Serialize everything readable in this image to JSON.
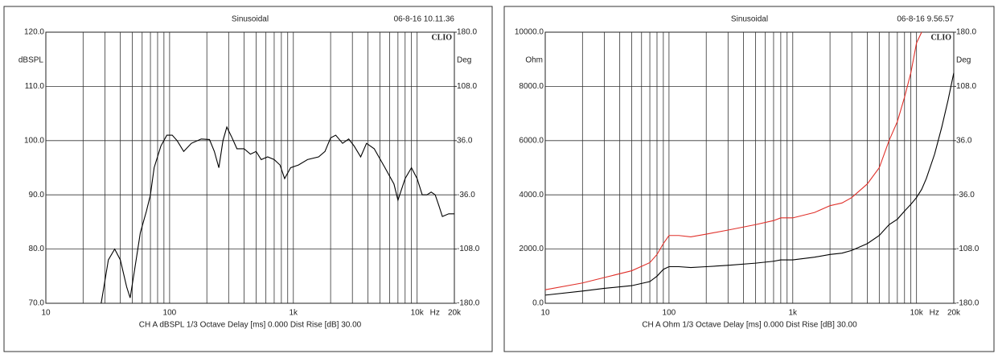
{
  "chart_data": [
    {
      "type": "line",
      "title": "Sinusoidal",
      "timestamp": "06-8-16 10.11.36",
      "brand": "CLIO",
      "ylabel": "dBSPL",
      "y2label": "Deg",
      "xunit": "Hz",
      "footer": "CH A   dBSPL   1/3 Octave   Delay [ms] 0.000   Dist Rise [dB] 30.00",
      "log_x": true,
      "grid": true,
      "xlim": [
        10,
        20000
      ],
      "xticks": [
        10,
        100,
        {
          "value": 1000,
          "label": "1k"
        },
        {
          "value": 10000,
          "label": "10k"
        },
        {
          "value": 20000,
          "label": "20k"
        }
      ],
      "xminor": [
        20,
        30,
        40,
        50,
        60,
        70,
        80,
        90,
        200,
        300,
        400,
        500,
        600,
        700,
        800,
        900,
        2000,
        3000,
        4000,
        5000,
        6000,
        7000,
        8000,
        9000
      ],
      "ylim": [
        70,
        120
      ],
      "yticks": [
        {
          "value": 70,
          "label": "70.0"
        },
        {
          "value": 80,
          "label": "80.0"
        },
        {
          "value": 90,
          "label": "90.0"
        },
        {
          "value": 100,
          "label": "100.0"
        },
        {
          "value": 110,
          "label": "110.0"
        },
        {
          "value": 120,
          "label": "120.0"
        }
      ],
      "y2lim": [
        -180,
        180
      ],
      "y2ticks": [
        {
          "value": -180,
          "label": "-180.0"
        },
        {
          "value": -108,
          "label": "-108.0"
        },
        {
          "value": -36,
          "label": "-36.0"
        },
        {
          "value": 36,
          "label": "36.0"
        },
        {
          "value": 108,
          "label": "108.0"
        },
        {
          "value": 180,
          "label": "180.0"
        }
      ],
      "x": [
        28,
        32,
        36,
        40,
        45,
        48,
        52,
        58,
        65,
        70,
        75,
        85,
        95,
        105,
        115,
        130,
        150,
        180,
        210,
        230,
        250,
        270,
        290,
        320,
        350,
        400,
        450,
        500,
        550,
        620,
        700,
        780,
        850,
        950,
        1100,
        1300,
        1600,
        1800,
        2000,
        2200,
        2500,
        2800,
        3100,
        3500,
        3900,
        4500,
        5500,
        6500,
        7000,
        8000,
        9000,
        10000,
        11000,
        12000,
        13000,
        14000,
        15000,
        16000,
        18000,
        20000
      ],
      "series": [
        {
          "color": "#000000",
          "values": [
            70,
            78,
            80,
            78,
            73,
            71,
            76,
            83,
            87,
            90,
            95,
            99,
            101,
            101,
            100,
            98,
            99.5,
            100.3,
            100.2,
            98,
            95,
            100,
            102.5,
            100.5,
            98.5,
            98.5,
            97.5,
            98,
            96.5,
            97,
            96.5,
            95.5,
            93,
            95,
            95.5,
            96.5,
            97,
            98,
            100.5,
            101,
            99.5,
            100.3,
            99,
            97,
            99.5,
            98.5,
            95,
            92,
            89,
            93,
            95,
            93,
            90,
            90,
            90.5,
            90,
            88,
            86,
            86.5,
            86.5
          ]
        }
      ]
    },
    {
      "type": "line",
      "title": "Sinusoidal",
      "timestamp": "06-8-16 9.56.57",
      "brand": "CLIO",
      "ylabel": "Ohm",
      "y2label": "Deg",
      "xunit": "Hz",
      "footer": "CH A   Ohm   1/3 Octave   Delay [ms] 0.000   Dist Rise [dB] 30.00",
      "log_x": true,
      "grid": true,
      "xlim": [
        10,
        20000
      ],
      "xticks": [
        10,
        100,
        {
          "value": 1000,
          "label": "1k"
        },
        {
          "value": 10000,
          "label": "10k"
        },
        {
          "value": 20000,
          "label": "20k"
        }
      ],
      "xminor": [
        20,
        30,
        40,
        50,
        60,
        70,
        80,
        90,
        200,
        300,
        400,
        500,
        600,
        700,
        800,
        900,
        2000,
        3000,
        4000,
        5000,
        6000,
        7000,
        8000,
        9000
      ],
      "ylim": [
        0,
        10000
      ],
      "yticks": [
        {
          "value": 0,
          "label": "0.0"
        },
        {
          "value": 2000,
          "label": "2000.0"
        },
        {
          "value": 4000,
          "label": "4000.0"
        },
        {
          "value": 6000,
          "label": "6000.0"
        },
        {
          "value": 8000,
          "label": "8000.0"
        },
        {
          "value": 10000,
          "label": "10000.0"
        }
      ],
      "y2lim": [
        -180,
        180
      ],
      "y2ticks": [
        {
          "value": -180,
          "label": "-180.0"
        },
        {
          "value": -108,
          "label": "-108.0"
        },
        {
          "value": -36,
          "label": "-36.0"
        },
        {
          "value": 36,
          "label": "36.0"
        },
        {
          "value": 108,
          "label": "108.0"
        },
        {
          "value": 180,
          "label": "180.0"
        }
      ],
      "x": [
        10,
        20,
        30,
        50,
        70,
        80,
        90,
        100,
        120,
        150,
        200,
        300,
        500,
        700,
        800,
        1000,
        1500,
        2000,
        2500,
        3000,
        4000,
        5000,
        6000,
        7000,
        8000,
        9000,
        10000,
        11000,
        12000,
        14000,
        16000,
        18000,
        20000
      ],
      "series": [
        {
          "color": "#000000",
          "values": [
            300,
            450,
            550,
            650,
            800,
            1000,
            1250,
            1350,
            1350,
            1320,
            1350,
            1400,
            1480,
            1550,
            1600,
            1600,
            1700,
            1800,
            1850,
            1950,
            2200,
            2500,
            2900,
            3100,
            3400,
            3650,
            3900,
            4200,
            4600,
            5500,
            6500,
            7500,
            8500
          ]
        },
        {
          "color": "#e0302a",
          "values": [
            500,
            750,
            950,
            1200,
            1500,
            1800,
            2200,
            2500,
            2500,
            2450,
            2550,
            2700,
            2900,
            3050,
            3150,
            3150,
            3350,
            3600,
            3700,
            3900,
            4400,
            5000,
            6000,
            6700,
            7600,
            8500,
            9600,
            10000,
            null,
            null,
            null,
            null,
            null
          ]
        }
      ]
    }
  ]
}
